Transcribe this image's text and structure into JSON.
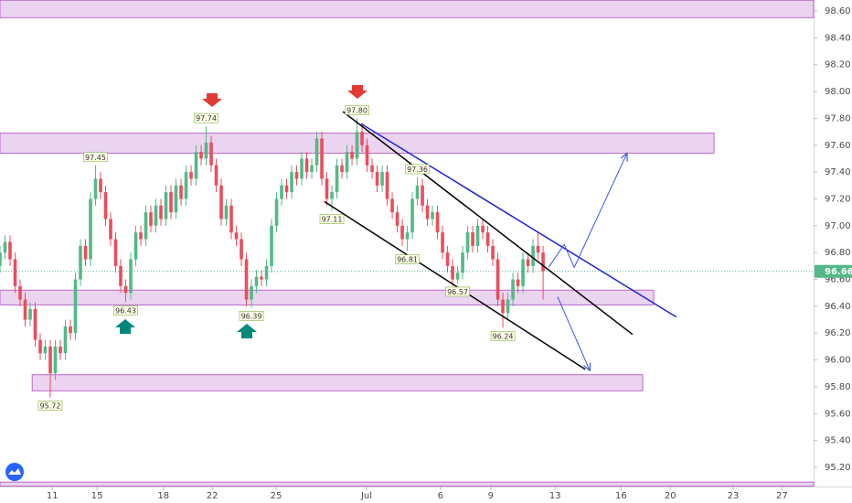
{
  "chart_data": {
    "type": "candlestick",
    "up_color": "#53b987",
    "down_color": "#eb4d5c",
    "xlim": [
      0,
      161.8
    ],
    "ylim": [
      95.1,
      98.68
    ],
    "xticks": [
      {
        "value": 10.4,
        "label": "11"
      },
      {
        "value": 19.3,
        "label": "15"
      },
      {
        "value": 32.5,
        "label": "18"
      },
      {
        "value": 42.2,
        "label": "22"
      },
      {
        "value": 54.9,
        "label": "25"
      },
      {
        "value": 72.9,
        "label": "Jul"
      },
      {
        "value": 87.6,
        "label": "6"
      },
      {
        "value": 97.6,
        "label": "9"
      },
      {
        "value": 110.4,
        "label": "13"
      },
      {
        "value": 123.5,
        "label": "16"
      },
      {
        "value": 133.3,
        "label": "20"
      },
      {
        "value": 145.8,
        "label": "23"
      },
      {
        "value": 155.5,
        "label": "27"
      }
    ],
    "yticks": [
      {
        "value": 98.6,
        "label": "98.60"
      },
      {
        "value": 98.4,
        "label": "98.40"
      },
      {
        "value": 98.2,
        "label": "98.20"
      },
      {
        "value": 98.0,
        "label": "98.00"
      },
      {
        "value": 97.8,
        "label": "97.80"
      },
      {
        "value": 97.6,
        "label": "97.60"
      },
      {
        "value": 97.4,
        "label": "97.40"
      },
      {
        "value": 97.2,
        "label": "97.20"
      },
      {
        "value": 97.0,
        "label": "97.00"
      },
      {
        "value": 96.8,
        "label": "96.80"
      },
      {
        "value": 96.6,
        "label": "96.60"
      },
      {
        "value": 96.4,
        "label": "96.40"
      },
      {
        "value": 96.2,
        "label": "96.20"
      },
      {
        "value": 96.0,
        "label": "96.00"
      },
      {
        "value": 95.8,
        "label": "95.80"
      },
      {
        "value": 95.6,
        "label": "95.60"
      },
      {
        "value": 95.4,
        "label": "95.40"
      },
      {
        "value": 95.2,
        "label": "95.20"
      }
    ],
    "open": [
      96.7,
      96.8,
      96.88,
      96.75,
      96.55,
      96.45,
      96.3,
      96.38,
      96.15,
      96.05,
      96.1,
      95.9,
      96.1,
      96.05,
      96.25,
      96.2,
      96.6,
      96.85,
      96.75,
      97.2,
      97.35,
      97.25,
      97.05,
      96.9,
      96.7,
      96.55,
      96.5,
      96.75,
      96.95,
      96.9,
      97.1,
      97.0,
      97.15,
      97.05,
      97.25,
      97.1,
      97.3,
      97.2,
      97.4,
      97.35,
      97.55,
      97.5,
      97.62,
      97.45,
      97.3,
      97.05,
      97.15,
      96.95,
      96.9,
      96.75,
      96.45,
      96.55,
      96.62,
      96.6,
      96.7,
      97.0,
      97.2,
      97.3,
      97.25,
      97.4,
      97.35,
      97.5,
      97.4,
      97.45,
      97.65,
      97.35,
      97.2,
      97.25,
      97.45,
      97.4,
      97.55,
      97.5,
      97.7,
      97.6,
      97.45,
      97.4,
      97.3,
      97.4,
      97.2,
      97.1,
      97.0,
      96.9,
      96.95,
      97.2,
      97.3,
      97.15,
      97.05,
      97.1,
      96.95,
      96.8,
      96.7,
      96.6,
      96.65,
      96.8,
      96.95,
      96.85,
      97.0,
      96.95,
      96.85,
      96.75,
      96.45,
      96.35,
      96.45,
      96.6,
      96.55,
      96.75,
      96.7,
      96.85,
      96.8
    ],
    "high": [
      96.85,
      96.93,
      96.93,
      96.8,
      96.6,
      96.5,
      96.43,
      96.43,
      96.2,
      96.15,
      96.15,
      96.15,
      96.15,
      96.3,
      96.3,
      96.65,
      96.9,
      96.9,
      97.25,
      97.45,
      97.4,
      97.3,
      97.1,
      96.95,
      96.75,
      96.6,
      96.8,
      97.0,
      97.0,
      97.15,
      97.15,
      97.2,
      97.2,
      97.3,
      97.3,
      97.35,
      97.35,
      97.45,
      97.45,
      97.6,
      97.6,
      97.74,
      97.67,
      97.5,
      97.35,
      97.2,
      97.2,
      97.0,
      96.95,
      96.8,
      96.6,
      96.67,
      96.67,
      96.75,
      97.05,
      97.25,
      97.35,
      97.35,
      97.45,
      97.45,
      97.55,
      97.55,
      97.5,
      97.7,
      97.7,
      97.4,
      97.3,
      97.5,
      97.5,
      97.6,
      97.6,
      97.8,
      97.75,
      97.65,
      97.5,
      97.45,
      97.45,
      97.45,
      97.25,
      97.15,
      97.05,
      97.0,
      97.25,
      97.36,
      97.35,
      97.2,
      97.15,
      97.15,
      97.0,
      96.85,
      96.75,
      96.7,
      96.85,
      97.0,
      97.0,
      97.05,
      97.05,
      97.0,
      96.9,
      96.8,
      96.5,
      96.5,
      96.65,
      96.65,
      96.8,
      96.8,
      96.9,
      96.95,
      96.85
    ],
    "low": [
      96.65,
      96.75,
      96.7,
      96.5,
      96.4,
      96.25,
      96.25,
      96.1,
      96.0,
      96.0,
      95.72,
      95.85,
      96.0,
      96.0,
      96.15,
      96.15,
      96.55,
      96.7,
      96.7,
      97.15,
      97.2,
      97.0,
      96.85,
      96.65,
      96.5,
      96.43,
      96.45,
      96.7,
      96.85,
      96.85,
      96.95,
      96.95,
      97.0,
      97.0,
      97.05,
      97.05,
      97.15,
      97.15,
      97.3,
      97.3,
      97.45,
      97.45,
      97.4,
      97.25,
      97.0,
      97.0,
      96.9,
      96.85,
      96.7,
      96.4,
      96.39,
      96.5,
      96.55,
      96.55,
      96.65,
      96.95,
      97.15,
      97.2,
      97.2,
      97.3,
      97.3,
      97.35,
      97.35,
      97.4,
      97.3,
      97.15,
      97.11,
      97.2,
      97.35,
      97.35,
      97.45,
      97.45,
      97.55,
      97.4,
      97.35,
      97.25,
      97.25,
      97.15,
      97.05,
      96.95,
      96.85,
      96.81,
      96.9,
      97.15,
      97.1,
      97.0,
      97.0,
      96.9,
      96.75,
      96.65,
      96.55,
      96.57,
      96.6,
      96.75,
      96.8,
      96.8,
      96.9,
      96.8,
      96.7,
      96.4,
      96.24,
      96.3,
      96.4,
      96.5,
      96.5,
      96.65,
      96.65,
      96.75,
      96.45
    ],
    "close": [
      96.8,
      96.88,
      96.75,
      96.55,
      96.45,
      96.3,
      96.38,
      96.15,
      96.05,
      96.1,
      95.9,
      96.1,
      96.05,
      96.25,
      96.2,
      96.6,
      96.85,
      96.75,
      97.2,
      97.35,
      97.25,
      97.05,
      96.9,
      96.7,
      96.55,
      96.5,
      96.75,
      96.95,
      96.9,
      97.1,
      97.0,
      97.15,
      97.05,
      97.25,
      97.1,
      97.3,
      97.2,
      97.4,
      97.35,
      97.55,
      97.5,
      97.62,
      97.45,
      97.3,
      97.05,
      97.15,
      96.95,
      96.9,
      96.75,
      96.45,
      96.55,
      96.62,
      96.6,
      96.7,
      97.0,
      97.2,
      97.3,
      97.25,
      97.4,
      97.35,
      97.5,
      97.4,
      97.45,
      97.65,
      97.35,
      97.2,
      97.25,
      97.45,
      97.4,
      97.55,
      97.5,
      97.7,
      97.6,
      97.45,
      97.4,
      97.3,
      97.4,
      97.2,
      97.1,
      97.0,
      96.9,
      96.95,
      97.2,
      97.3,
      97.15,
      97.05,
      97.1,
      96.95,
      96.8,
      96.7,
      96.6,
      96.65,
      96.8,
      96.95,
      96.85,
      97.0,
      96.95,
      96.85,
      96.75,
      96.45,
      96.35,
      96.45,
      96.6,
      96.55,
      96.75,
      96.7,
      96.85,
      96.8,
      96.66
    ],
    "price_labels": [
      {
        "x": 10,
        "value": 95.72,
        "side": "low"
      },
      {
        "x": 19,
        "value": 97.45,
        "side": "high"
      },
      {
        "x": 25,
        "value": 96.43,
        "side": "low"
      },
      {
        "x": 41,
        "value": 97.74,
        "side": "high"
      },
      {
        "x": 50,
        "value": 96.39,
        "side": "low"
      },
      {
        "x": 66,
        "value": 97.11,
        "side": "low"
      },
      {
        "x": 71,
        "value": 97.8,
        "label": "97.80",
        "side": "high"
      },
      {
        "x": 81,
        "value": 96.81,
        "side": "low"
      },
      {
        "x": 83,
        "value": 97.36,
        "side": "high"
      },
      {
        "x": 91,
        "value": 96.57,
        "side": "low"
      },
      {
        "x": 100,
        "value": 96.24,
        "side": "low"
      }
    ],
    "zones": [
      {
        "x": [
          0,
          161.8
        ],
        "y": [
          98.68,
          98.55
        ]
      },
      {
        "x": [
          0,
          142
        ],
        "y": [
          97.69,
          97.54
        ]
      },
      {
        "x": [
          0,
          130
        ],
        "y": [
          96.52,
          96.41
        ]
      },
      {
        "x": [
          6.4,
          127.8
        ],
        "y": [
          95.89,
          95.77
        ]
      },
      {
        "x": [
          0,
          161.8
        ],
        "y": [
          95.09,
          95.06
        ]
      }
    ],
    "lines": [
      {
        "color": "#000000",
        "arrow": false,
        "x": [
          68.2,
          125.8
        ],
        "y": [
          97.85,
          96.19
        ]
      },
      {
        "color": "#000000",
        "arrow": false,
        "x": [
          64.5,
          116.4
        ],
        "y": [
          97.18,
          95.93
        ]
      },
      {
        "color": "#1e22d6",
        "arrow": false,
        "x": [
          71.8,
          134.5
        ],
        "y": [
          97.76,
          96.32
        ]
      },
      {
        "color": "#3f51e0",
        "arrow": true,
        "x": [
          109.1,
          112.2,
          114.2,
          124.7
        ],
        "y": [
          96.69,
          96.86,
          96.69,
          97.54
        ]
      },
      {
        "color": "#3f51e0",
        "arrow": true,
        "x": [
          110.9,
          117.3
        ],
        "y": [
          96.47,
          95.92
        ]
      }
    ],
    "last_price": 96.66,
    "last_color": "#53b987"
  }
}
